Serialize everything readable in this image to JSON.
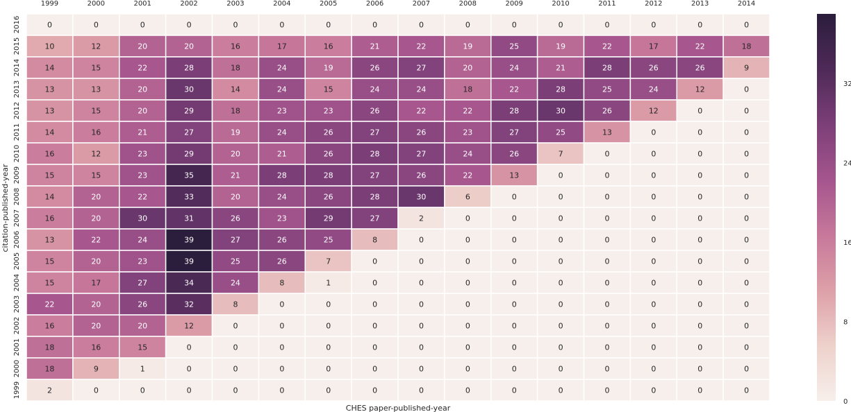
{
  "chart_data": {
    "type": "heatmap",
    "xlabel": "CHES paper-published-year",
    "ylabel": "citation-published-year",
    "x_categories": [
      "1999",
      "2000",
      "2001",
      "2002",
      "2003",
      "2004",
      "2005",
      "2006",
      "2007",
      "2008",
      "2009",
      "2010",
      "2011",
      "2012",
      "2013",
      "2014"
    ],
    "y_categories": [
      "2016",
      "2015",
      "2014",
      "2013",
      "2012",
      "2011",
      "2010",
      "2009",
      "2008",
      "2007",
      "2006",
      "2005",
      "2004",
      "2003",
      "2002",
      "2001",
      "2000",
      "1999"
    ],
    "values": [
      [
        0,
        0,
        0,
        0,
        0,
        0,
        0,
        0,
        0,
        0,
        0,
        0,
        0,
        0,
        0,
        0
      ],
      [
        10,
        12,
        20,
        20,
        16,
        17,
        16,
        21,
        22,
        19,
        25,
        19,
        22,
        17,
        22,
        18
      ],
      [
        14,
        15,
        22,
        28,
        18,
        24,
        19,
        26,
        27,
        20,
        24,
        21,
        28,
        26,
        26,
        9
      ],
      [
        13,
        13,
        20,
        30,
        14,
        24,
        15,
        24,
        24,
        18,
        22,
        28,
        25,
        24,
        12,
        0
      ],
      [
        13,
        15,
        20,
        29,
        18,
        23,
        23,
        26,
        22,
        22,
        28,
        30,
        26,
        12,
        0,
        0
      ],
      [
        14,
        16,
        21,
        27,
        19,
        24,
        26,
        27,
        26,
        23,
        27,
        25,
        13,
        0,
        0,
        0
      ],
      [
        16,
        12,
        23,
        29,
        20,
        21,
        26,
        28,
        27,
        24,
        26,
        7,
        0,
        0,
        0,
        0
      ],
      [
        15,
        15,
        23,
        35,
        21,
        28,
        28,
        27,
        26,
        22,
        13,
        0,
        0,
        0,
        0,
        0
      ],
      [
        14,
        20,
        22,
        33,
        20,
        24,
        26,
        28,
        30,
        6,
        0,
        0,
        0,
        0,
        0,
        0
      ],
      [
        16,
        20,
        30,
        31,
        26,
        23,
        29,
        27,
        2,
        0,
        0,
        0,
        0,
        0,
        0,
        0
      ],
      [
        13,
        22,
        24,
        39,
        27,
        26,
        25,
        8,
        0,
        0,
        0,
        0,
        0,
        0,
        0,
        0
      ],
      [
        15,
        20,
        23,
        39,
        25,
        26,
        7,
        0,
        0,
        0,
        0,
        0,
        0,
        0,
        0,
        0
      ],
      [
        15,
        17,
        27,
        34,
        24,
        8,
        1,
        0,
        0,
        0,
        0,
        0,
        0,
        0,
        0,
        0
      ],
      [
        22,
        20,
        26,
        32,
        8,
        0,
        0,
        0,
        0,
        0,
        0,
        0,
        0,
        0,
        0,
        0
      ],
      [
        16,
        20,
        20,
        12,
        0,
        0,
        0,
        0,
        0,
        0,
        0,
        0,
        0,
        0,
        0,
        0
      ],
      [
        18,
        16,
        15,
        0,
        0,
        0,
        0,
        0,
        0,
        0,
        0,
        0,
        0,
        0,
        0,
        0
      ],
      [
        18,
        9,
        1,
        0,
        0,
        0,
        0,
        0,
        0,
        0,
        0,
        0,
        0,
        0,
        0,
        0
      ],
      [
        2,
        0,
        0,
        0,
        0,
        0,
        0,
        0,
        0,
        0,
        0,
        0,
        0,
        0,
        0,
        0
      ]
    ],
    "colorbar_ticks": [
      "0",
      "8",
      "16",
      "24",
      "32"
    ],
    "colorbar_tick_values": [
      0,
      8,
      16,
      24,
      32
    ],
    "vmin": 0,
    "vmax": 39,
    "colorscale": [
      "#f7efeb",
      "#eed1cb",
      "#dda0a8",
      "#c7789a",
      "#a5558d",
      "#7c3f78",
      "#4e2a58",
      "#2b1d3c"
    ],
    "grid": false,
    "annotated": true
  }
}
